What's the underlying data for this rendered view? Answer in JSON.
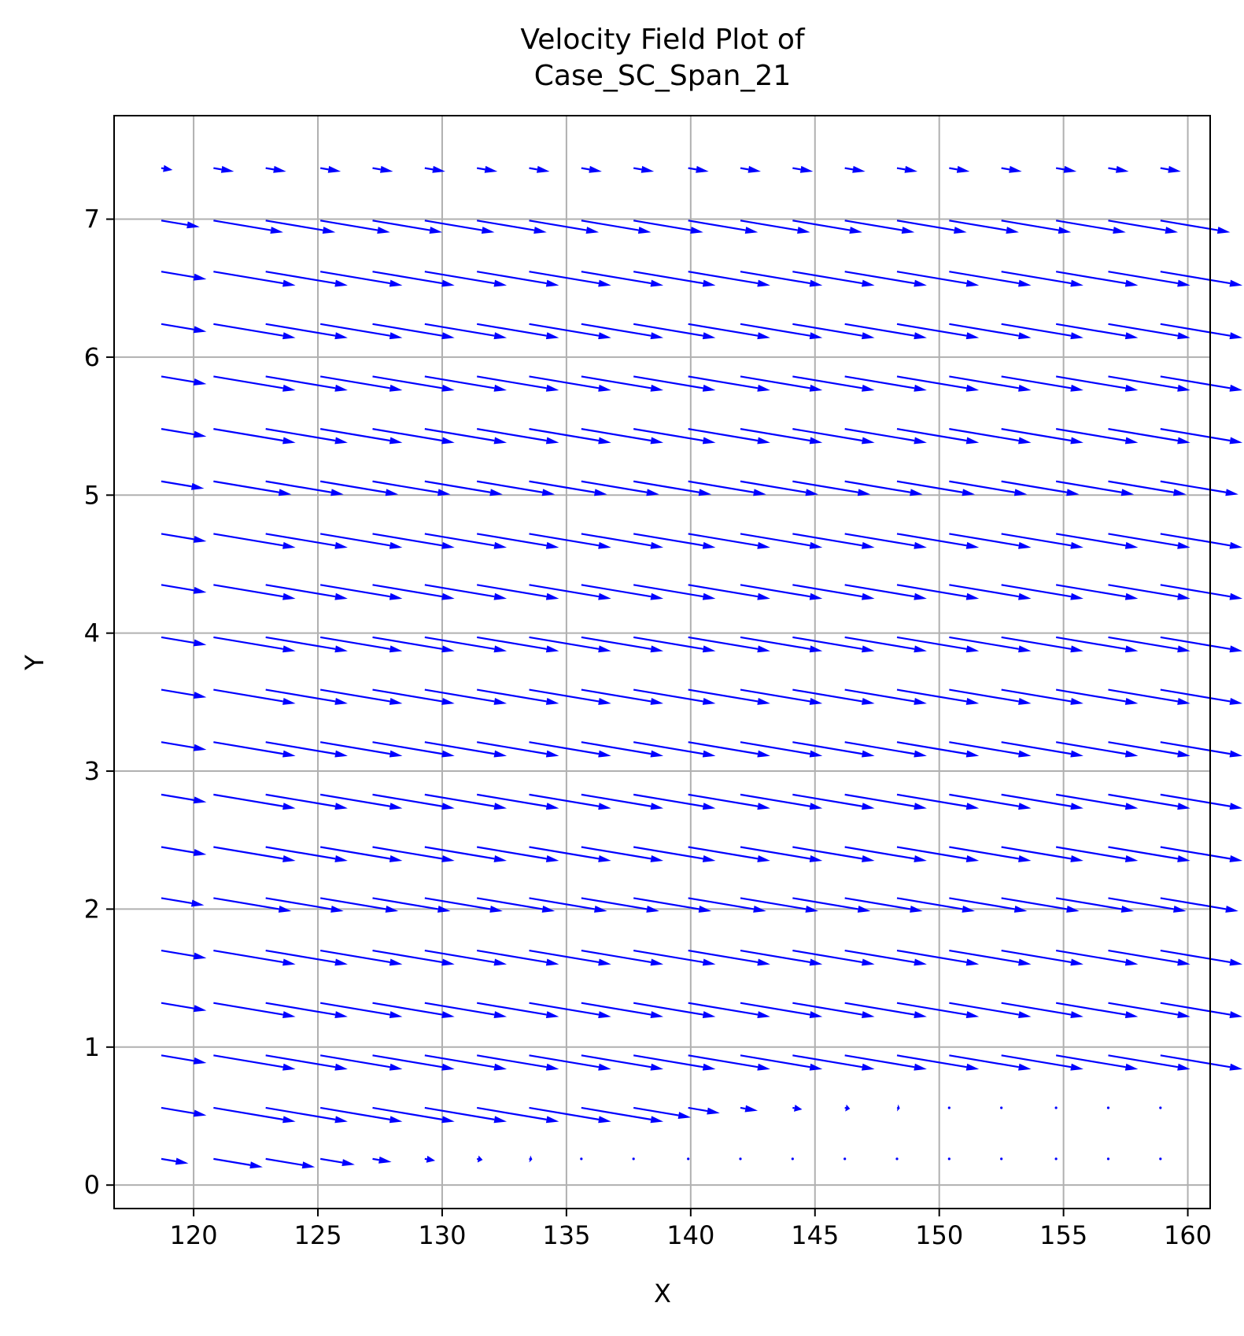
{
  "chart_data": {
    "type": "quiver",
    "title": "Velocity Field Plot of\nCase_SC_Span_21",
    "xlabel": "X",
    "ylabel": "Y",
    "xlim": [
      116.8,
      160.9
    ],
    "ylim": [
      -0.17,
      7.75
    ],
    "xticks": [
      120,
      125,
      130,
      135,
      140,
      145,
      150,
      155,
      160
    ],
    "yticks": [
      0,
      1,
      2,
      3,
      4,
      5,
      6,
      7
    ],
    "grid": true,
    "arrow_color": "#0000ff",
    "grid_color": "#b0b0b0",
    "x": [
      118.7,
      120.8,
      122.9,
      125.1,
      127.2,
      129.3,
      131.4,
      133.5,
      135.6,
      137.7,
      139.9,
      142.0,
      144.1,
      146.2,
      148.3,
      150.4,
      152.5,
      154.7,
      156.8,
      158.9
    ],
    "y": [
      0.19,
      0.56,
      0.94,
      1.32,
      1.7,
      2.08,
      2.45,
      2.83,
      3.21,
      3.59,
      3.97,
      4.35,
      4.72,
      5.1,
      5.48,
      5.86,
      6.24,
      6.62,
      6.99,
      7.37
    ],
    "u_typical": 3.3,
    "v_typical": -0.1,
    "row_speed_scale": [
      0.6,
      1.0,
      1.0,
      1.0,
      1.0,
      0.95,
      1.0,
      1.0,
      1.0,
      1.0,
      1.0,
      1.0,
      1.0,
      0.95,
      1.0,
      1.0,
      1.0,
      1.0,
      0.85,
      0.25
    ],
    "decay_rows": {
      "0": {
        "decay_from_column": 3,
        "min_scale": 0.02
      },
      "1": {
        "decay_from_column": 9,
        "min_scale": 0.02
      }
    },
    "first_column_scale": 0.55
  }
}
